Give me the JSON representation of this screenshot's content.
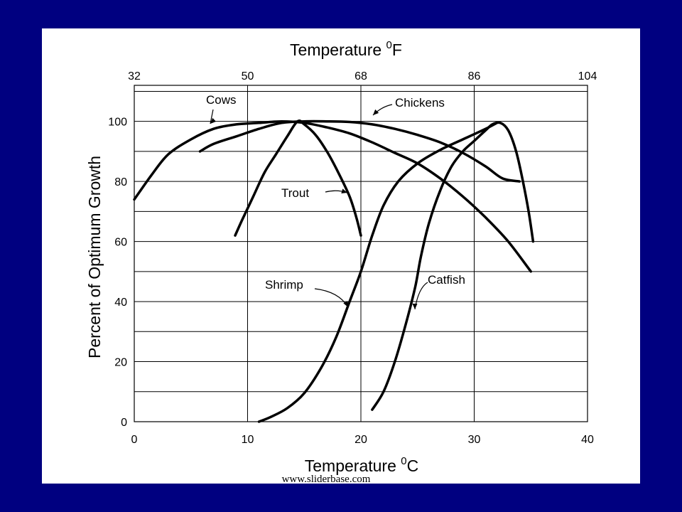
{
  "chart_data": {
    "type": "line",
    "title": "Temperature 0F",
    "xlabel": "Temperature 0C",
    "ylabel": "Percent of Optimum Growth",
    "xlim": [
      0,
      40
    ],
    "ylim": [
      0,
      112
    ],
    "x_ticks": [
      0,
      10,
      20,
      30,
      40
    ],
    "y_ticks": [
      0,
      20,
      40,
      60,
      80,
      100
    ],
    "y_grid": [
      0,
      10,
      20,
      30,
      40,
      50,
      60,
      70,
      80,
      90,
      100,
      110
    ],
    "x_top_ticks": [
      {
        "value": 0,
        "label": "32"
      },
      {
        "value": 10,
        "label": "50"
      },
      {
        "value": 20,
        "label": "68"
      },
      {
        "value": 30,
        "label": "86"
      },
      {
        "value": 40,
        "label": "104"
      }
    ],
    "grid": true,
    "series": [
      {
        "name": "Cows",
        "points": [
          [
            0,
            74
          ],
          [
            1.5,
            82
          ],
          [
            3,
            89
          ],
          [
            5,
            94
          ],
          [
            7,
            97.5
          ],
          [
            9,
            99
          ],
          [
            11,
            99.5
          ],
          [
            13,
            100
          ],
          [
            15,
            99.5
          ],
          [
            17,
            98
          ],
          [
            19,
            96
          ],
          [
            21,
            93
          ],
          [
            23,
            89.5
          ],
          [
            25,
            86
          ],
          [
            27,
            81
          ],
          [
            29,
            75
          ],
          [
            31,
            68
          ],
          [
            33,
            60
          ],
          [
            35,
            50
          ]
        ]
      },
      {
        "name": "Chickens",
        "points": [
          [
            5.8,
            90
          ],
          [
            7,
            92.5
          ],
          [
            9,
            95
          ],
          [
            11,
            97.5
          ],
          [
            13,
            99.5
          ],
          [
            15,
            100
          ],
          [
            17,
            100
          ],
          [
            19,
            99.8
          ],
          [
            21,
            99
          ],
          [
            23,
            97.5
          ],
          [
            25,
            95.5
          ],
          [
            27,
            93
          ],
          [
            29,
            89.5
          ],
          [
            31,
            85
          ],
          [
            32.5,
            81
          ],
          [
            34,
            80
          ]
        ]
      },
      {
        "name": "Trout",
        "points": [
          [
            8.9,
            62
          ],
          [
            9.5,
            67
          ],
          [
            10.5,
            75
          ],
          [
            11.5,
            83
          ],
          [
            12.5,
            89
          ],
          [
            13.5,
            95
          ],
          [
            14.4,
            100
          ],
          [
            15,
            99
          ],
          [
            16,
            95.5
          ],
          [
            17,
            90
          ],
          [
            18,
            83
          ],
          [
            19,
            75
          ],
          [
            19.6,
            68
          ],
          [
            20,
            62
          ]
        ]
      },
      {
        "name": "Shrimp",
        "points": [
          [
            11,
            0
          ],
          [
            12,
            1.5
          ],
          [
            13.5,
            4.5
          ],
          [
            15,
            9.5
          ],
          [
            16.5,
            18
          ],
          [
            17.8,
            28
          ],
          [
            19,
            40
          ],
          [
            20,
            50
          ],
          [
            21,
            62
          ],
          [
            22,
            72
          ],
          [
            23.3,
            80
          ],
          [
            25,
            86
          ],
          [
            27,
            90.5
          ],
          [
            29,
            94
          ],
          [
            31,
            97.5
          ],
          [
            32,
            99.5
          ]
        ]
      },
      {
        "name": "Catfish",
        "points": [
          [
            21,
            4
          ],
          [
            22,
            10
          ],
          [
            23,
            20
          ],
          [
            24,
            33
          ],
          [
            24.8,
            45
          ],
          [
            25.3,
            55
          ],
          [
            26,
            66
          ],
          [
            27,
            77
          ],
          [
            28,
            85
          ],
          [
            29,
            90
          ],
          [
            30,
            93.5
          ],
          [
            31,
            97
          ],
          [
            31.6,
            99
          ],
          [
            32.3,
            99.5
          ],
          [
            33,
            97
          ],
          [
            33.7,
            90
          ],
          [
            34.3,
            80
          ],
          [
            34.8,
            70
          ],
          [
            35.2,
            60
          ]
        ]
      }
    ],
    "annotations": [
      {
        "text": "Cows",
        "series": "Cows"
      },
      {
        "text": "Chickens",
        "series": "Chickens"
      },
      {
        "text": "Trout",
        "series": "Trout"
      },
      {
        "text": "Shrimp",
        "series": "Shrimp"
      },
      {
        "text": "Catfish",
        "series": "Catfish"
      }
    ]
  },
  "watermark": "www.sliderbase.com"
}
